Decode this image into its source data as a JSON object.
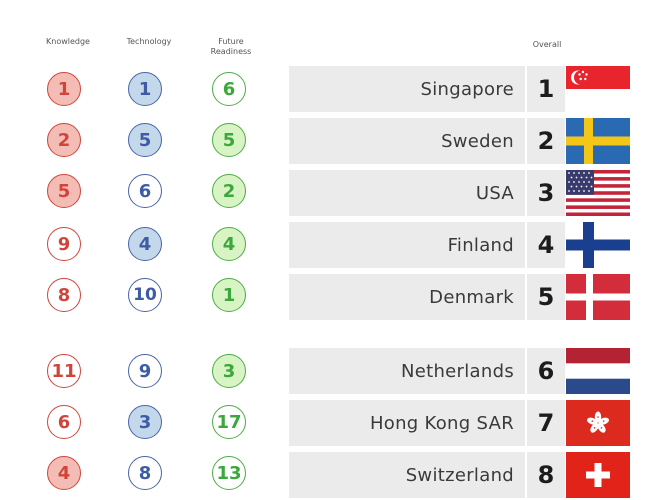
{
  "headers": {
    "knowledge": "Knowledge",
    "technology": "Technology",
    "future": "Future Readiness",
    "overall": "Overall"
  },
  "rows": [
    {
      "knowledge": "1",
      "technology": "1",
      "future": "6",
      "country": "Singapore",
      "rank": "1",
      "flag": "singapore-flag"
    },
    {
      "knowledge": "2",
      "technology": "5",
      "future": "5",
      "country": "Sweden",
      "rank": "2",
      "flag": "sweden-flag"
    },
    {
      "knowledge": "5",
      "technology": "6",
      "future": "2",
      "country": "USA",
      "rank": "3",
      "flag": "usa-flag"
    },
    {
      "knowledge": "9",
      "technology": "4",
      "future": "4",
      "country": "Finland",
      "rank": "4",
      "flag": "finland-flag"
    },
    {
      "knowledge": "8",
      "technology": "10",
      "future": "1",
      "country": "Denmark",
      "rank": "5",
      "flag": "denmark-flag"
    },
    {
      "knowledge": "11",
      "technology": "9",
      "future": "3",
      "country": "Netherlands",
      "rank": "6",
      "flag": "netherlands-flag"
    },
    {
      "knowledge": "6",
      "technology": "3",
      "future": "17",
      "country": "Hong Kong SAR",
      "rank": "7",
      "flag": "hong-kong-flag"
    },
    {
      "knowledge": "4",
      "technology": "8",
      "future": "13",
      "country": "Switzerland",
      "rank": "8",
      "flag": "switzerland-flag"
    }
  ],
  "colors": {
    "knowledge": "#d0453b",
    "technology": "#3e5ca6",
    "future_readiness": "#3aa83a",
    "bar_background": "#ebebeb"
  }
}
